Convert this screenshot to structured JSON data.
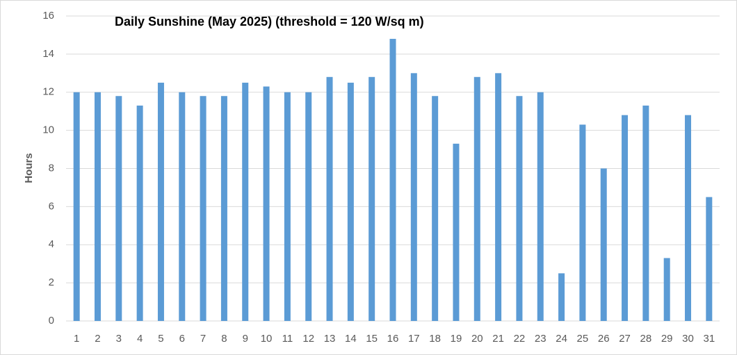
{
  "chart_data": {
    "type": "bar",
    "title": "Daily Sunshine (May 2025) (threshold = 120 W/sq m)",
    "y_label": "Hours",
    "categories": [
      "1",
      "2",
      "3",
      "4",
      "5",
      "6",
      "7",
      "8",
      "9",
      "10",
      "11",
      "12",
      "13",
      "14",
      "15",
      "16",
      "17",
      "18",
      "19",
      "20",
      "21",
      "22",
      "23",
      "24",
      "25",
      "26",
      "27",
      "28",
      "29",
      "30",
      "31"
    ],
    "values": [
      12,
      12,
      11.8,
      11.3,
      12.5,
      12,
      11.8,
      11.8,
      12.5,
      12.3,
      12,
      12,
      12.8,
      12.5,
      12.8,
      14.8,
      13,
      11.8,
      9.3,
      12.8,
      13,
      11.8,
      12,
      2.5,
      10.3,
      8,
      10.8,
      11.3,
      3.3,
      10.8,
      6.5
    ],
    "color": "#5b9bd5",
    "ylim": [
      0,
      16
    ],
    "yticks": [
      0,
      2,
      4,
      6,
      8,
      10,
      12,
      14,
      16
    ],
    "grid": true
  }
}
